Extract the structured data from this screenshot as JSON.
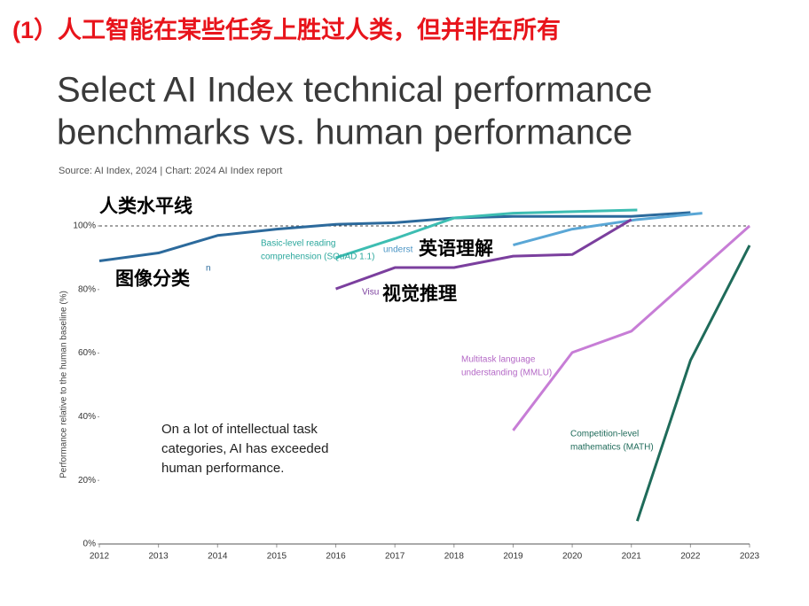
{
  "slide_heading": "(1）人工智能在某些任务上胜过人类，但并非在所有",
  "chart_data": {
    "type": "line",
    "title": [
      "Select AI Index technical performance",
      "benchmarks vs. human performance"
    ],
    "source": "Source: AI Index, 2024 | Chart: 2024 AI Index report",
    "ylabel": "Performance relative to the human baseline (%)",
    "xlim": [
      2012,
      2023
    ],
    "xticks": [
      2012,
      2013,
      2014,
      2015,
      2016,
      2017,
      2018,
      2019,
      2020,
      2021,
      2022,
      2023
    ],
    "ylim": [
      0,
      100
    ],
    "yticks": [
      {
        "value": 0,
        "label": "0%"
      },
      {
        "value": 20,
        "label": "20%"
      },
      {
        "value": 40,
        "label": "40%"
      },
      {
        "value": 60,
        "label": "60%"
      },
      {
        "value": 80,
        "label": "80%"
      },
      {
        "value": 100,
        "label": "100%"
      }
    ],
    "baseline": 100,
    "series": [
      {
        "color": "#2c6a9c",
        "x": [
          2012,
          2013,
          2014,
          2015,
          2016,
          2017,
          2018,
          2019,
          2020,
          2021,
          2022
        ],
        "values": [
          89,
          91.5,
          97,
          99,
          100.5,
          101,
          102.5,
          103,
          103,
          103,
          104.2
        ]
      },
      {
        "color": "#3dbdb2",
        "x": [
          2016,
          2017,
          2018,
          2019,
          2020,
          2021.1
        ],
        "values": [
          90,
          96,
          102.5,
          104,
          104.5,
          105
        ]
      },
      {
        "color": "#5aa7d6",
        "x": [
          2019,
          2020,
          2021.1,
          2022.2
        ],
        "values": [
          94,
          99,
          102,
          104
        ]
      },
      {
        "color": "#7b3f9e",
        "x": [
          2016,
          2017,
          2018,
          2019,
          2020,
          2021
        ],
        "values": [
          80.2,
          86.9,
          86.9,
          90.5,
          91,
          102
        ]
      },
      {
        "color": "#c77dd6",
        "x": [
          2019,
          2020,
          2021,
          2023
        ],
        "values": [
          35.7,
          60.2,
          66.9,
          100
        ]
      },
      {
        "color": "#1f6b5a",
        "x": [
          2021.1,
          2022,
          2023
        ],
        "values": [
          7.2,
          57.7,
          93.9
        ]
      }
    ],
    "annotations": [
      {
        "lines": [
          "人类水平线"
        ]
      },
      {
        "lines": [
          "图像分类"
        ]
      },
      {
        "lines": [
          "n"
        ]
      },
      {
        "lines": [
          "Basic-level reading",
          "comprehension (SQuAD 1.1)"
        ]
      },
      {
        "lines": [
          "underst"
        ]
      },
      {
        "lines": [
          "英语理解"
        ]
      },
      {
        "lines": [
          "Visu"
        ]
      },
      {
        "lines": [
          "视觉推理"
        ]
      },
      {
        "lines": [
          "Multitask language",
          "understanding (MMLU)"
        ]
      },
      {
        "lines": [
          "Competition-level",
          "mathematics (MATH)"
        ]
      },
      {
        "lines": [
          "On a lot of intellectual task",
          "categories, AI has exceeded",
          "human performance."
        ]
      }
    ]
  }
}
